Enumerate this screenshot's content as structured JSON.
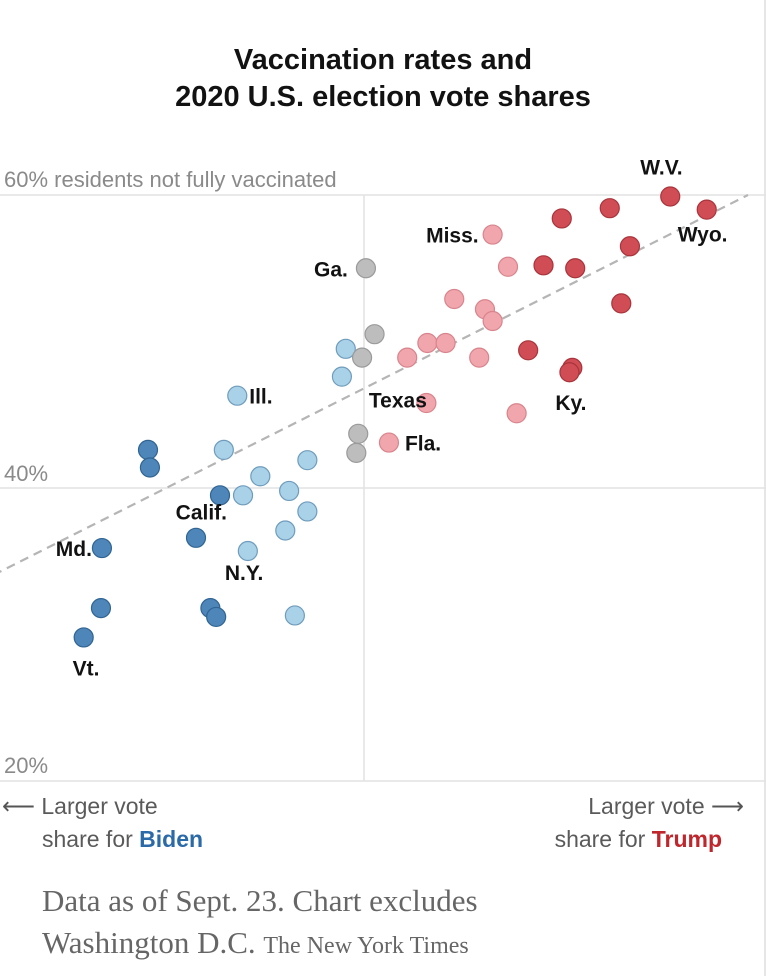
{
  "chart_data": {
    "type": "scatter",
    "title": "Vaccination rates and",
    "title_line2": "2020 U.S. election vote shares",
    "ylabel": "residents not fully vaccinated",
    "yticks": [
      "60% residents not fully vaccinated",
      "40%",
      "20%"
    ],
    "ylim": [
      20,
      60
    ],
    "xlim": [
      -40,
      40
    ],
    "x_axis_left": "Larger vote",
    "x_axis_left_2": "share for",
    "x_axis_left_name": "Biden",
    "x_axis_right": "Larger vote",
    "x_axis_right_2": "share for",
    "x_axis_right_name": "Trump",
    "grid": true,
    "trendline": {
      "style": "dashed",
      "from": [
        -40,
        33.6
      ],
      "to": [
        40,
        60.0
      ]
    },
    "colors": {
      "strong_biden": "#4f86b9",
      "lean_biden": "#a9d2e8",
      "swing": "#bdbdbd",
      "lean_trump": "#f1a6ad",
      "strong_trump": "#d14d55"
    },
    "points": [
      {
        "label": "W.V.",
        "x": 31.9,
        "y": 59.9,
        "group": "strong_trump"
      },
      {
        "label": "Wyo.",
        "x": 35.7,
        "y": 59.0,
        "group": "strong_trump"
      },
      {
        "label": "",
        "x": 25.6,
        "y": 59.1,
        "group": "strong_trump"
      },
      {
        "label": "",
        "x": 20.6,
        "y": 58.4,
        "group": "strong_trump"
      },
      {
        "label": "Miss.",
        "x": 13.4,
        "y": 57.3,
        "group": "lean_trump"
      },
      {
        "label": "",
        "x": 27.7,
        "y": 56.5,
        "group": "strong_trump"
      },
      {
        "label": "",
        "x": 18.7,
        "y": 55.2,
        "group": "strong_trump"
      },
      {
        "label": "",
        "x": 22.0,
        "y": 55.0,
        "group": "strong_trump"
      },
      {
        "label": "",
        "x": 15.0,
        "y": 55.1,
        "group": "lean_trump"
      },
      {
        "label": "Ga.",
        "x": 0.2,
        "y": 55.0,
        "group": "swing"
      },
      {
        "label": "",
        "x": 9.4,
        "y": 52.9,
        "group": "lean_trump"
      },
      {
        "label": "",
        "x": 26.8,
        "y": 52.6,
        "group": "strong_trump"
      },
      {
        "label": "",
        "x": 12.6,
        "y": 52.2,
        "group": "lean_trump"
      },
      {
        "label": "",
        "x": 13.4,
        "y": 51.4,
        "group": "lean_trump"
      },
      {
        "label": "",
        "x": 1.1,
        "y": 50.5,
        "group": "swing"
      },
      {
        "label": "",
        "x": 6.6,
        "y": 49.9,
        "group": "lean_trump"
      },
      {
        "label": "",
        "x": 8.5,
        "y": 49.9,
        "group": "lean_trump"
      },
      {
        "label": "",
        "x": -1.9,
        "y": 49.5,
        "group": "lean_biden"
      },
      {
        "label": "",
        "x": 17.1,
        "y": 49.4,
        "group": "strong_trump"
      },
      {
        "label": "",
        "x": 4.5,
        "y": 48.9,
        "group": "lean_trump"
      },
      {
        "label": "",
        "x": 12.0,
        "y": 48.9,
        "group": "lean_trump"
      },
      {
        "label": "",
        "x": -0.2,
        "y": 48.9,
        "group": "swing"
      },
      {
        "label": "Ky.",
        "x": 21.7,
        "y": 48.2,
        "group": "strong_trump"
      },
      {
        "label": "",
        "x": 21.4,
        "y": 47.9,
        "group": "strong_trump"
      },
      {
        "label": "Texas",
        "x": -2.3,
        "y": 47.6,
        "group": "lean_biden"
      },
      {
        "label": "Ill.",
        "x": -13.2,
        "y": 46.3,
        "group": "lean_biden"
      },
      {
        "label": "",
        "x": 6.5,
        "y": 45.8,
        "group": "lean_trump"
      },
      {
        "label": "",
        "x": 15.9,
        "y": 45.1,
        "group": "lean_trump"
      },
      {
        "label": "",
        "x": -0.6,
        "y": 43.7,
        "group": "swing"
      },
      {
        "label": "Fla.",
        "x": 2.6,
        "y": 43.1,
        "group": "lean_trump"
      },
      {
        "label": "",
        "x": -22.5,
        "y": 42.6,
        "group": "strong_biden"
      },
      {
        "label": "",
        "x": -14.6,
        "y": 42.6,
        "group": "lean_biden"
      },
      {
        "label": "",
        "x": -0.8,
        "y": 42.4,
        "group": "swing"
      },
      {
        "label": "",
        "x": -5.9,
        "y": 41.9,
        "group": "lean_biden"
      },
      {
        "label": "",
        "x": -22.3,
        "y": 41.4,
        "group": "strong_biden"
      },
      {
        "label": "",
        "x": -10.8,
        "y": 40.8,
        "group": "lean_biden"
      },
      {
        "label": "",
        "x": -7.8,
        "y": 39.8,
        "group": "lean_biden"
      },
      {
        "label": "Calif.",
        "x": -15.0,
        "y": 39.5,
        "group": "strong_biden"
      },
      {
        "label": "",
        "x": -12.6,
        "y": 39.5,
        "group": "lean_biden"
      },
      {
        "label": "",
        "x": -5.9,
        "y": 38.4,
        "group": "lean_biden"
      },
      {
        "label": "",
        "x": -8.2,
        "y": 37.1,
        "group": "lean_biden"
      },
      {
        "label": "",
        "x": -17.5,
        "y": 36.6,
        "group": "strong_biden"
      },
      {
        "label": "Md.",
        "x": -27.3,
        "y": 35.9,
        "group": "strong_biden"
      },
      {
        "label": "N.Y.",
        "x": -12.1,
        "y": 35.7,
        "group": "lean_biden"
      },
      {
        "label": "",
        "x": -27.4,
        "y": 31.8,
        "group": "strong_biden"
      },
      {
        "label": "",
        "x": -16.0,
        "y": 31.8,
        "group": "strong_biden"
      },
      {
        "label": "",
        "x": -15.4,
        "y": 31.2,
        "group": "strong_biden"
      },
      {
        "label": "",
        "x": -7.2,
        "y": 31.3,
        "group": "lean_biden"
      },
      {
        "label": "Vt.",
        "x": -29.2,
        "y": 29.8,
        "group": "strong_biden"
      }
    ]
  },
  "footer": {
    "note_line1": "Data as of Sept. 23. Chart excludes",
    "note_line2": "Washington D.C.",
    "source": "The New York Times"
  }
}
